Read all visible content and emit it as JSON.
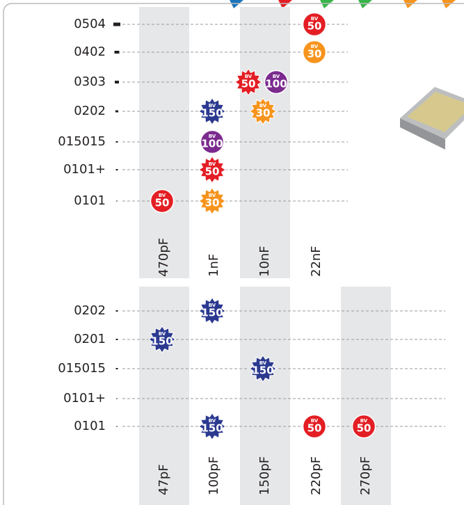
{
  "badge_prefix": "BV",
  "panels": [
    {
      "columns": [
        "470pF",
        "1nF",
        "10nF",
        "22nF"
      ],
      "rows": [
        {
          "label": "0504",
          "cells": [
            [],
            [],
            [],
            [
              {
                "value": "50",
                "shape": "circle",
                "color": "#e31e24"
              }
            ]
          ]
        },
        {
          "label": "0402",
          "cells": [
            [],
            [],
            [],
            [
              {
                "value": "30",
                "shape": "circle",
                "color": "#f7941d"
              }
            ]
          ]
        },
        {
          "label": "0303",
          "cells": [
            [],
            [],
            [
              {
                "value": "50",
                "shape": "star",
                "color": "#e31e24"
              },
              {
                "value": "100",
                "shape": "circle",
                "color": "#7b2a8e"
              }
            ],
            []
          ]
        },
        {
          "label": "0202",
          "cells": [
            [],
            [
              {
                "value": "150",
                "shape": "star",
                "color": "#2b3990"
              }
            ],
            [
              {
                "value": "30",
                "shape": "star",
                "color": "#f7941d"
              }
            ],
            []
          ]
        },
        {
          "label": "015015",
          "cells": [
            [],
            [
              {
                "value": "100",
                "shape": "circle",
                "color": "#7b2a8e"
              }
            ],
            [],
            []
          ]
        },
        {
          "label": "0101+",
          "cells": [
            [],
            [
              {
                "value": "50",
                "shape": "star",
                "color": "#e31e24"
              }
            ],
            [],
            []
          ]
        },
        {
          "label": "0101",
          "cells": [
            [
              {
                "value": "50",
                "shape": "circle",
                "color": "#e31e24"
              }
            ],
            [
              {
                "value": "30",
                "shape": "star",
                "color": "#f7941d"
              }
            ],
            [],
            []
          ]
        }
      ]
    },
    {
      "columns": [
        "47pF",
        "100pF",
        "150pF",
        "220pF",
        "270pF"
      ],
      "rows": [
        {
          "label": "0202",
          "cells": [
            [],
            [
              {
                "value": "150",
                "shape": "star",
                "color": "#2b3990"
              }
            ],
            [],
            [],
            []
          ]
        },
        {
          "label": "0201",
          "cells": [
            [
              {
                "value": "150",
                "shape": "star",
                "color": "#2b3990"
              }
            ],
            [],
            [],
            [],
            []
          ]
        },
        {
          "label": "015015",
          "cells": [
            [],
            [],
            [
              {
                "value": "150",
                "shape": "star",
                "color": "#2b3990"
              }
            ],
            [],
            []
          ]
        },
        {
          "label": "0101+",
          "cells": [
            [],
            [],
            [],
            [],
            []
          ]
        },
        {
          "label": "0101",
          "cells": [
            [],
            [
              {
                "value": "150",
                "shape": "star",
                "color": "#2b3990"
              }
            ],
            [],
            [
              {
                "value": "50",
                "shape": "circle",
                "color": "#e31e24"
              }
            ],
            [
              {
                "value": "50",
                "shape": "circle",
                "color": "#e31e24"
              }
            ]
          ]
        }
      ]
    }
  ]
}
